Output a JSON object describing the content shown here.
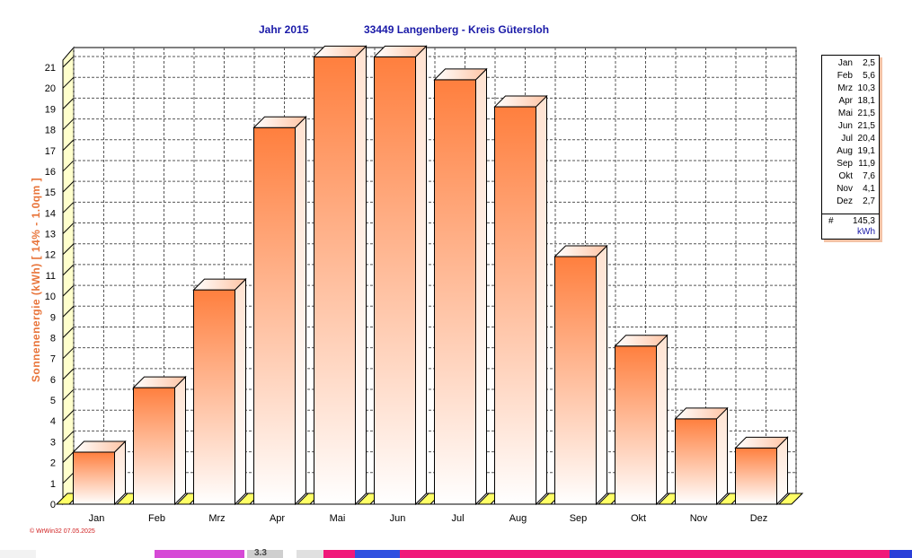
{
  "header": {
    "year_label": "Jahr  2015",
    "location": "33449 Langenberg - Kreis Gütersloh"
  },
  "chart_data": {
    "type": "bar",
    "title": "Jahr  2015     33449 Langenberg - Kreis Gütersloh",
    "ylabel": "Sonnenenergie  (kWh)    [ 14% - 1.0qm ]",
    "xlabel": "",
    "categories": [
      "Jan",
      "Feb",
      "Mrz",
      "Apr",
      "Mai",
      "Jun",
      "Jul",
      "Aug",
      "Sep",
      "Okt",
      "Nov",
      "Dez"
    ],
    "values": [
      2.5,
      5.6,
      10.3,
      18.1,
      21.5,
      21.5,
      20.4,
      19.1,
      11.9,
      7.6,
      4.1,
      2.7
    ],
    "ylim": [
      0,
      21
    ],
    "yticks": [
      0,
      1,
      2,
      3,
      4,
      5,
      6,
      7,
      8,
      9,
      10,
      11,
      12,
      13,
      14,
      15,
      16,
      17,
      18,
      19,
      20,
      21
    ],
    "grid": true,
    "legend_placement": "right",
    "colors": {
      "bar_top": "#ff7f3e",
      "bar_bottom": "#ffffff",
      "bar_edge": "#000000",
      "wall": "#ffffcc",
      "wall_edge": "#000000",
      "grid": "#555555",
      "floor": "#ffff66"
    }
  },
  "legend": {
    "rows": [
      {
        "month": "Jan",
        "value": "2,5"
      },
      {
        "month": "Feb",
        "value": "5,6"
      },
      {
        "month": "Mrz",
        "value": "10,3"
      },
      {
        "month": "Apr",
        "value": "18,1"
      },
      {
        "month": "Mai",
        "value": "21,5"
      },
      {
        "month": "Jun",
        "value": "21,5"
      },
      {
        "month": "Jul",
        "value": "20,4"
      },
      {
        "month": "Aug",
        "value": "19,1"
      },
      {
        "month": "Sep",
        "value": "11,9"
      },
      {
        "month": "Okt",
        "value": "7,6"
      },
      {
        "month": "Nov",
        "value": "4,1"
      },
      {
        "month": "Dez",
        "value": "2,7"
      }
    ],
    "total_symbol": "#",
    "total_value": "145,3",
    "total_unit": "kWh"
  },
  "footer": {
    "text": "© WrWin32  07.05.2025"
  },
  "bottom_strip": {
    "text": "3.3"
  }
}
